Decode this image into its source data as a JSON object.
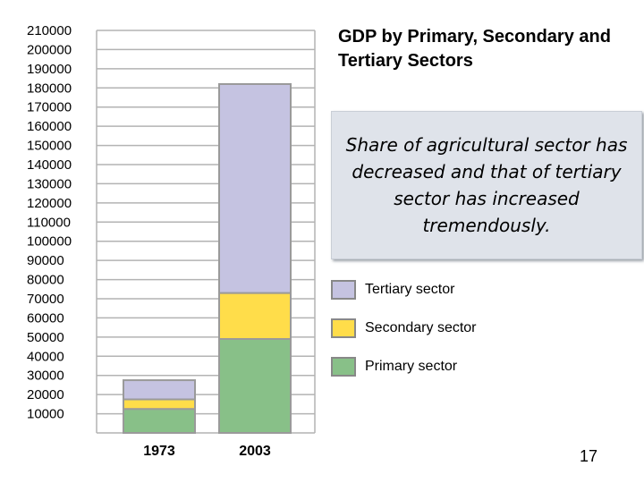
{
  "chart_data": {
    "type": "bar",
    "stacked": true,
    "title": "GDP by Primary, Secondary and Tertiary Sectors",
    "categories": [
      "1973",
      "2003"
    ],
    "series": [
      {
        "name": "Primary sector",
        "color": "#88c088",
        "values": [
          12500,
          49000
        ]
      },
      {
        "name": "Secondary sector",
        "color": "#ffdd4a",
        "values": [
          5000,
          24000
        ]
      },
      {
        "name": "Tertiary sector",
        "color": "#c5c3e1",
        "values": [
          10000,
          109000
        ]
      }
    ],
    "y_ticks": [
      10000,
      20000,
      30000,
      40000,
      50000,
      60000,
      70000,
      80000,
      90000,
      100000,
      110000,
      120000,
      130000,
      140000,
      150000,
      160000,
      170000,
      180000,
      190000,
      200000,
      210000
    ],
    "ylim": [
      0,
      210000
    ],
    "grid": true,
    "legend_position": "right"
  },
  "note": "Share of agricultural sector has decreased and that of tertiary sector has increased tremendously.",
  "page_number": "17",
  "colors": {
    "grid": "#b3b3b3",
    "bar_border": "#9a9a9a"
  }
}
